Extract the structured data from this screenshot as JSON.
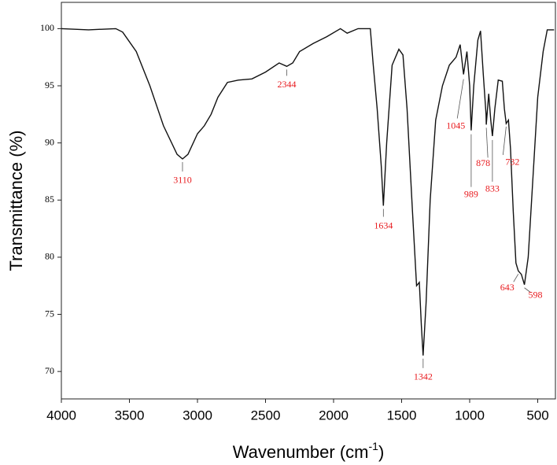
{
  "chart_data": {
    "type": "line",
    "x_label": {
      "text": "Wavenumber (cm",
      "sup": "-1",
      "end": ")"
    },
    "y_label": "Transmittance (%)",
    "x": [
      4000,
      3800,
      3600,
      3550,
      3450,
      3350,
      3250,
      3150,
      3110,
      3070,
      3000,
      2950,
      2900,
      2850,
      2780,
      2700,
      2600,
      2500,
      2400,
      2344,
      2300,
      2250,
      2150,
      2050,
      1950,
      1900,
      1820,
      1730,
      1710,
      1680,
      1650,
      1634,
      1610,
      1570,
      1520,
      1490,
      1460,
      1420,
      1390,
      1370,
      1355,
      1342,
      1320,
      1290,
      1250,
      1200,
      1150,
      1100,
      1070,
      1045,
      1020,
      1000,
      989,
      970,
      940,
      920,
      900,
      880,
      878,
      860,
      845,
      833,
      815,
      790,
      760,
      745,
      732,
      715,
      700,
      680,
      660,
      643,
      620,
      598,
      570,
      540,
      500,
      460,
      430,
      380
    ],
    "series": [
      {
        "color": "#111111",
        "values": [
          100,
          99.9,
          100,
          99.7,
          98,
          95,
          91.5,
          89,
          88.6,
          89,
          90.8,
          91.5,
          92.5,
          94,
          95.3,
          95.5,
          95.6,
          96.2,
          97,
          96.7,
          97,
          98,
          98.7,
          99.3,
          100,
          99.6,
          100,
          100,
          97,
          93,
          88,
          84.5,
          90,
          96.8,
          98.2,
          97.7,
          93,
          84,
          77.5,
          77.8,
          74,
          71.4,
          76,
          85,
          92,
          95,
          96.8,
          97.5,
          98.6,
          96,
          98,
          95,
          91.1,
          95,
          99,
          99.8,
          96,
          92.5,
          91.6,
          94.3,
          92,
          90.6,
          93,
          95.5,
          95.4,
          93,
          91.7,
          92,
          89.5,
          84,
          79.5,
          78.8,
          78.5,
          77.6,
          80,
          86,
          94,
          98,
          99.9,
          99.9
        ]
      }
    ],
    "peak_labels": [
      3110,
      2344,
      1634,
      1342,
      1045,
      989,
      878,
      833,
      732,
      643,
      598
    ],
    "annotation_color": "#e8191d",
    "xlim": [
      4000,
      370
    ],
    "xticks": [
      4000,
      3500,
      3000,
      2500,
      2000,
      1500,
      1000,
      500
    ],
    "ylim": [
      67.6,
      102.3
    ],
    "yticks": [
      70,
      75,
      80,
      85,
      90,
      95,
      100
    ]
  }
}
